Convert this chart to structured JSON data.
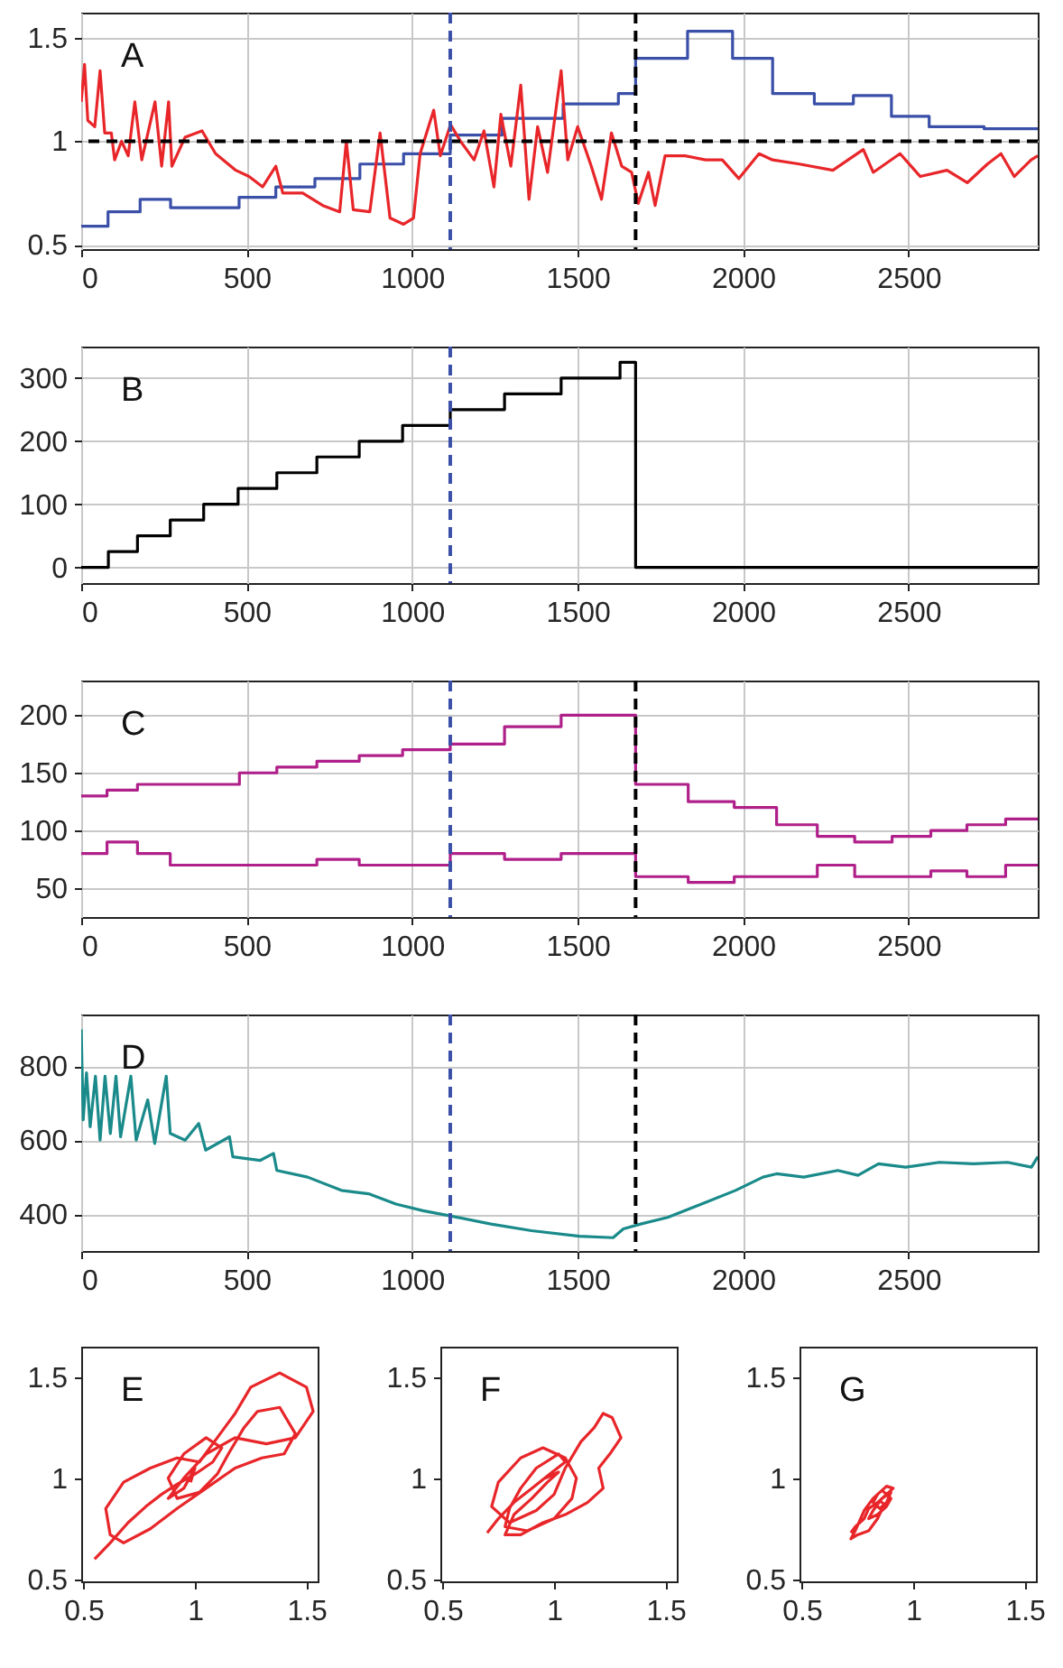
{
  "chart_data": [
    {
      "type": "step",
      "annotations": [
        "A"
      ],
      "xlim": [
        0,
        2890
      ],
      "xticks": [
        0,
        500,
        1000,
        1500,
        2000,
        2500
      ],
      "ylim": [
        0.48,
        1.62
      ],
      "yticks": [
        0.5,
        1,
        1.5
      ],
      "grid": true,
      "series": [
        {
          "color": "#3a4fa8",
          "x": [
            0,
            81,
            178,
            270,
            477,
            588,
            706,
            842,
            974,
            1115,
            1272,
            1456,
            1623,
            1675,
            1832,
            1968,
            2089,
            2215,
            2333,
            2448,
            2562,
            2728,
            2890
          ],
          "values": [
            0.59,
            0.66,
            0.72,
            0.68,
            0.73,
            0.78,
            0.82,
            0.89,
            0.94,
            1.03,
            1.11,
            1.18,
            1.23,
            1.4,
            1.53,
            1.4,
            1.23,
            1.18,
            1.22,
            1.12,
            1.07,
            1.06,
            1.06
          ]
        },
        {
          "type": "line",
          "color": "#e8262a",
          "x": [
            0,
            10,
            20,
            41,
            57,
            71,
            91,
            101,
            122,
            142,
            162,
            183,
            223,
            243,
            264,
            274,
            314,
            365,
            406,
            467,
            507,
            548,
            588,
            609,
            669,
            730,
            781,
            801,
            822,
            872,
            903,
            933,
            974,
            1004,
            1024,
            1065,
            1085,
            1116,
            1146,
            1187,
            1217,
            1247,
            1268,
            1298,
            1328,
            1353,
            1379,
            1409,
            1450,
            1470,
            1500,
            1541,
            1572,
            1602,
            1633,
            1663,
            1683,
            1714,
            1734,
            1764,
            1825,
            1886,
            1937,
            1987,
            2048,
            2089,
            2170,
            2271,
            2363,
            2393,
            2474,
            2535,
            2616,
            2677,
            2738,
            2779,
            2819,
            2870,
            2890
          ],
          "values": [
            1.19,
            1.37,
            1.1,
            1.07,
            1.34,
            1.04,
            1.04,
            0.91,
            1.0,
            0.93,
            1.19,
            0.91,
            1.19,
            0.88,
            1.19,
            0.88,
            1.02,
            1.05,
            0.94,
            0.86,
            0.83,
            0.78,
            0.88,
            0.75,
            0.75,
            0.69,
            0.66,
            1.0,
            0.67,
            0.66,
            1.04,
            0.63,
            0.6,
            0.63,
            0.94,
            1.15,
            0.93,
            1.08,
            1.0,
            0.91,
            1.05,
            0.78,
            1.13,
            0.88,
            1.27,
            0.72,
            1.07,
            0.85,
            1.34,
            0.91,
            1.07,
            0.88,
            0.72,
            1.04,
            0.88,
            0.85,
            0.7,
            0.85,
            0.69,
            0.93,
            0.93,
            0.91,
            0.91,
            0.82,
            0.94,
            0.91,
            0.89,
            0.86,
            0.96,
            0.85,
            0.94,
            0.83,
            0.86,
            0.8,
            0.89,
            0.94,
            0.83,
            0.91,
            0.93
          ]
        }
      ],
      "ref_lines": [
        {
          "axis": "y",
          "value": 1,
          "color": "#000000",
          "line_style": "dashed"
        },
        {
          "axis": "x",
          "value": 1115,
          "color": "#3a4fa8",
          "line_style": "dashed"
        },
        {
          "axis": "x",
          "value": 1675,
          "color": "#000000",
          "line_style": "dashed"
        }
      ]
    },
    {
      "type": "step",
      "annotations": [
        "B"
      ],
      "xlim": [
        0,
        2890
      ],
      "xticks": [
        0,
        500,
        1000,
        1500,
        2000,
        2500
      ],
      "ylim": [
        -25,
        350
      ],
      "yticks": [
        0,
        100,
        200,
        300
      ],
      "grid": true,
      "series": [
        {
          "color": "#000000",
          "x": [
            0,
            82,
            170,
            269,
            370,
            474,
            591,
            712,
            840,
            971,
            1115,
            1279,
            1450,
            1628,
            1675,
            2890
          ],
          "values": [
            0,
            25,
            50,
            75,
            100,
            125,
            150,
            175,
            200,
            225,
            250,
            275,
            300,
            325,
            0,
            0
          ]
        }
      ],
      "ref_lines": [
        {
          "axis": "x",
          "value": 1115,
          "color": "#3a4fa8",
          "line_style": "dashed"
        }
      ]
    },
    {
      "type": "step",
      "annotations": [
        "C"
      ],
      "xlim": [
        0,
        2890
      ],
      "xticks": [
        0,
        500,
        1000,
        1500,
        2000,
        2500
      ],
      "ylim": [
        25,
        230
      ],
      "yticks": [
        50,
        100,
        150,
        200
      ],
      "grid": true,
      "series": [
        {
          "color": "#b0208a",
          "x": [
            0,
            78,
            170,
            478,
            591,
            712,
            840,
            971,
            1115,
            1279,
            1450,
            1675,
            1834,
            1973,
            2101,
            2224,
            2337,
            2450,
            2567,
            2676,
            2793,
            2890
          ],
          "values": [
            130,
            135,
            140,
            150,
            155,
            160,
            165,
            170,
            175,
            190,
            200,
            140,
            125,
            120,
            105,
            95,
            90,
            95,
            100,
            105,
            110,
            110
          ]
        },
        {
          "color": "#b0208a",
          "x": [
            0,
            78,
            170,
            269,
            712,
            840,
            1115,
            1279,
            1450,
            1675,
            1834,
            1973,
            2224,
            2337,
            2567,
            2676,
            2793,
            2890
          ],
          "values": [
            80,
            90,
            80,
            70,
            75,
            70,
            80,
            75,
            80,
            60,
            55,
            60,
            70,
            60,
            65,
            60,
            70,
            70
          ]
        }
      ],
      "ref_lines": [
        {
          "axis": "x",
          "value": 1115,
          "color": "#3a4fa8",
          "line_style": "dashed"
        },
        {
          "axis": "x",
          "value": 1675,
          "color": "#000000",
          "line_style": "dashed"
        }
      ]
    },
    {
      "type": "line",
      "annotations": [
        "D"
      ],
      "xlim": [
        0,
        2890
      ],
      "xticks": [
        0,
        500,
        1000,
        1500,
        2000,
        2500
      ],
      "ylim": [
        300,
        940
      ],
      "yticks": [
        400,
        600,
        800
      ],
      "grid": true,
      "series": [
        {
          "color": "#1a8a8a",
          "x": [
            0,
            6,
            16,
            27,
            43,
            57,
            72,
            88,
            105,
            119,
            150,
            166,
            201,
            222,
            257,
            269,
            314,
            355,
            376,
            448,
            458,
            540,
            581,
            591,
            684,
            786,
            868,
            951,
            1033,
            1115,
            1238,
            1361,
            1505,
            1607,
            1638,
            1690,
            1772,
            1874,
            1977,
            2060,
            2101,
            2183,
            2286,
            2347,
            2409,
            2491,
            2593,
            2696,
            2799,
            2871,
            2890
          ],
          "values": [
            900,
            655,
            782,
            636,
            773,
            600,
            773,
            618,
            773,
            609,
            773,
            600,
            709,
            591,
            773,
            618,
            600,
            645,
            573,
            609,
            555,
            545,
            564,
            518,
            500,
            464,
            455,
            427,
            409,
            395,
            373,
            355,
            340,
            336,
            360,
            373,
            391,
            427,
            464,
            500,
            509,
            500,
            518,
            505,
            536,
            527,
            540,
            536,
            540,
            527,
            555
          ]
        }
      ],
      "ref_lines": [
        {
          "axis": "x",
          "value": 1115,
          "color": "#3a4fa8",
          "line_style": "dashed"
        },
        {
          "axis": "x",
          "value": 1675,
          "color": "#000000",
          "line_style": "dashed"
        }
      ]
    },
    {
      "type": "line",
      "annotations": [
        "E"
      ],
      "xlim": [
        0.49,
        1.55
      ],
      "xticks": [
        0.5,
        1,
        1.5
      ],
      "ylim": [
        0.49,
        1.65
      ],
      "yticks": [
        0.5,
        1,
        1.5
      ],
      "series": [
        {
          "color": "#e8262a",
          "x": [
            0.55,
            0.62,
            0.7,
            0.78,
            0.85,
            0.92,
            1.0,
            1.08,
            1.12,
            1.05,
            0.95,
            0.88,
            0.92,
            1.02,
            1.1,
            1.15,
            1.22,
            1.28,
            1.38,
            1.45,
            1.4,
            1.3,
            1.18,
            1.05,
            0.92,
            0.8,
            0.68,
            0.62,
            0.6,
            0.68,
            0.8,
            0.92,
            1.02,
            1.1,
            1.18,
            1.25,
            1.38,
            1.5,
            1.53,
            1.45,
            1.32,
            1.18,
            1.05,
            0.95,
            0.88,
            0.95,
            1.0,
            0.98
          ],
          "values": [
            0.6,
            0.68,
            0.78,
            0.86,
            0.92,
            0.97,
            1.02,
            1.08,
            1.15,
            1.2,
            1.12,
            1.0,
            0.9,
            0.93,
            1.02,
            1.12,
            1.25,
            1.33,
            1.35,
            1.22,
            1.12,
            1.1,
            1.05,
            0.95,
            0.85,
            0.75,
            0.68,
            0.72,
            0.85,
            0.98,
            1.05,
            1.1,
            1.08,
            1.2,
            1.32,
            1.45,
            1.52,
            1.45,
            1.33,
            1.2,
            1.17,
            1.2,
            1.12,
            1.0,
            0.9,
            0.95,
            1.05,
            0.98
          ]
        }
      ]
    },
    {
      "type": "line",
      "annotations": [
        "F"
      ],
      "xlim": [
        0.49,
        1.55
      ],
      "xticks": [
        0.5,
        1,
        1.5
      ],
      "ylim": [
        0.49,
        1.65
      ],
      "yticks": [
        0.5,
        1,
        1.5
      ],
      "series": [
        {
          "color": "#e8262a",
          "x": [
            0.7,
            0.75,
            0.82,
            0.9,
            0.98,
            1.05,
            1.02,
            0.92,
            0.85,
            0.8,
            0.78,
            0.88,
            1.0,
            1.08,
            1.1,
            1.05,
            0.95,
            0.85,
            0.75,
            0.72,
            0.8,
            0.92,
            1.0,
            1.05,
            1.12,
            1.18,
            1.22,
            1.26,
            1.3,
            1.25,
            1.2,
            1.22,
            1.15,
            1.05,
            0.95,
            0.85,
            0.78,
            0.82,
            0.9,
            0.97,
            1.02,
            0.96
          ],
          "values": [
            0.73,
            0.8,
            0.88,
            0.95,
            1.02,
            1.08,
            1.12,
            1.05,
            0.95,
            0.85,
            0.76,
            0.74,
            0.8,
            0.9,
            1.0,
            1.1,
            1.15,
            1.1,
            0.98,
            0.86,
            0.78,
            0.84,
            0.92,
            1.05,
            1.18,
            1.25,
            1.32,
            1.3,
            1.2,
            1.12,
            1.05,
            0.95,
            0.88,
            0.82,
            0.78,
            0.72,
            0.72,
            0.82,
            0.9,
            0.98,
            1.03,
            1.0
          ]
        }
      ]
    },
    {
      "type": "line",
      "annotations": [
        "G"
      ],
      "xlim": [
        0.49,
        1.55
      ],
      "xticks": [
        0.5,
        1,
        1.5
      ],
      "ylim": [
        0.49,
        1.65
      ],
      "yticks": [
        0.5,
        1,
        1.5
      ],
      "series": [
        {
          "color": "#e8262a",
          "x": [
            0.72,
            0.74,
            0.78,
            0.8,
            0.84,
            0.88,
            0.91,
            0.88,
            0.84,
            0.82,
            0.85,
            0.88,
            0.9,
            0.86,
            0.82,
            0.8,
            0.84,
            0.88,
            0.9,
            0.86,
            0.82,
            0.78,
            0.76,
            0.74,
            0.72,
            0.75,
            0.8,
            0.84,
            0.87,
            0.85
          ],
          "values": [
            0.73,
            0.76,
            0.8,
            0.85,
            0.88,
            0.92,
            0.95,
            0.96,
            0.92,
            0.88,
            0.85,
            0.88,
            0.93,
            0.9,
            0.84,
            0.8,
            0.82,
            0.86,
            0.9,
            0.94,
            0.9,
            0.84,
            0.79,
            0.74,
            0.7,
            0.72,
            0.74,
            0.8,
            0.87,
            0.89
          ]
        }
      ]
    }
  ]
}
